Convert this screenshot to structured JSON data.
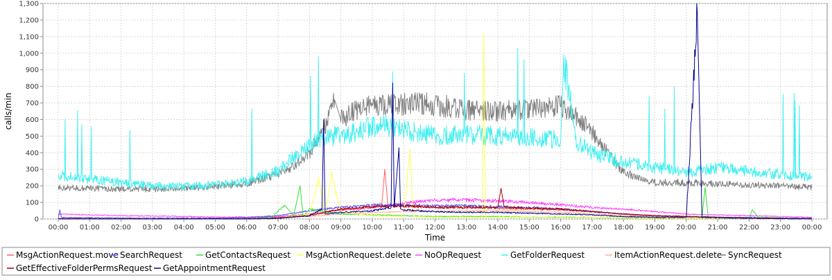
{
  "chart_data": {
    "type": "line",
    "xlabel": "Time",
    "ylabel": "calls/min",
    "ylim": [
      0,
      1300
    ],
    "xlim": [
      "00:00",
      "24:00"
    ],
    "x_tick_labels": [
      "00:00",
      "01:00",
      "02:00",
      "03:00",
      "04:00",
      "05:00",
      "06:00",
      "07:00",
      "08:00",
      "09:00",
      "10:00",
      "11:00",
      "12:00",
      "13:00",
      "14:00",
      "15:00",
      "16:00",
      "17:00",
      "18:00",
      "19:00",
      "20:00",
      "21:00",
      "22:00",
      "23:00",
      "00:00"
    ],
    "y_tick_labels": [
      "0",
      "100",
      "200",
      "300",
      "400",
      "500",
      "600",
      "700",
      "800",
      "900",
      "1,000",
      "1,100",
      "1,200",
      "1,300"
    ],
    "y_tick_values": [
      0,
      100,
      200,
      300,
      400,
      500,
      600,
      700,
      800,
      900,
      1000,
      1100,
      1200,
      1300
    ],
    "grid": true,
    "legend_position": "bottom",
    "x_unit": "hours",
    "series": [
      {
        "name": "MsgActionRequest.move",
        "color": "#ff6060",
        "x": [
          0,
          1,
          2,
          3,
          4,
          5,
          6,
          7,
          7.5,
          8,
          8.5,
          9,
          9.5,
          10,
          10.3,
          10.4,
          10.5,
          11,
          12,
          13,
          14,
          15,
          16,
          17,
          18,
          19,
          20,
          21,
          22,
          23,
          24
        ],
        "y": [
          5,
          5,
          5,
          5,
          3,
          3,
          5,
          10,
          20,
          30,
          45,
          55,
          60,
          70,
          80,
          300,
          80,
          75,
          70,
          70,
          65,
          60,
          55,
          45,
          30,
          20,
          15,
          10,
          8,
          5,
          5
        ]
      },
      {
        "name": "SearchRequest",
        "color": "#5050ff",
        "x": [
          0,
          0.05,
          0.1,
          1,
          2,
          3,
          4,
          5,
          6,
          7,
          8,
          9,
          10,
          11,
          12,
          13,
          14,
          15,
          16,
          17,
          18,
          19,
          20,
          21,
          22,
          23,
          24
        ],
        "y": [
          5,
          55,
          10,
          8,
          5,
          5,
          5,
          5,
          8,
          20,
          50,
          70,
          85,
          85,
          80,
          80,
          75,
          70,
          60,
          45,
          30,
          20,
          15,
          10,
          8,
          5,
          5
        ]
      },
      {
        "name": "GetContactsRequest",
        "color": "#30e030",
        "x": [
          0,
          6,
          6.8,
          7.2,
          7.5,
          7.7,
          7.8,
          8,
          9,
          10,
          11,
          12,
          13,
          14,
          15,
          16,
          17,
          18,
          19,
          20,
          20.5,
          20.6,
          20.7,
          21,
          22,
          22.1,
          22.3,
          23,
          24
        ],
        "y": [
          0,
          0,
          10,
          85,
          20,
          200,
          15,
          60,
          30,
          25,
          20,
          15,
          15,
          15,
          10,
          10,
          8,
          5,
          5,
          5,
          10,
          190,
          10,
          5,
          5,
          55,
          10,
          5,
          0
        ]
      },
      {
        "name": "MsgActionRequest.delete",
        "color": "#ffff50",
        "x": [
          0,
          6,
          7,
          8,
          8.3,
          8.5,
          8.7,
          9,
          10,
          11,
          11.2,
          11.3,
          12,
          13,
          13.5,
          13.55,
          13.6,
          14,
          15,
          16,
          17,
          18,
          19,
          20,
          21,
          22,
          23,
          24
        ],
        "y": [
          0,
          0,
          5,
          30,
          240,
          20,
          270,
          40,
          20,
          15,
          420,
          15,
          10,
          10,
          10,
          1120,
          10,
          10,
          10,
          8,
          8,
          5,
          5,
          5,
          5,
          5,
          0,
          0
        ]
      },
      {
        "name": "NoOpRequest",
        "color": "#ff40ff",
        "x": [
          0,
          1,
          2,
          3,
          4,
          5,
          6,
          7,
          8,
          9,
          10,
          11,
          12,
          13,
          14,
          15,
          16,
          17,
          18,
          19,
          20,
          21,
          22,
          23,
          24
        ],
        "y": [
          30,
          25,
          20,
          18,
          15,
          12,
          12,
          15,
          30,
          55,
          70,
          95,
          115,
          115,
          110,
          100,
          85,
          70,
          60,
          45,
          30,
          25,
          20,
          15,
          10
        ]
      },
      {
        "name": "GetFolderRequest",
        "color": "#40f0f0",
        "x": [
          0,
          1,
          2,
          3,
          4,
          5,
          6,
          7,
          7.5,
          8,
          8.5,
          9,
          9.5,
          10,
          10.5,
          11,
          11.5,
          12,
          13,
          14,
          15,
          15.5,
          16,
          16.1,
          16.5,
          17,
          17.5,
          18,
          18.5,
          19,
          19.5,
          20,
          20.5,
          21,
          22,
          23,
          24
        ],
        "y": [
          260,
          240,
          220,
          200,
          195,
          205,
          230,
          290,
          370,
          450,
          500,
          500,
          520,
          560,
          560,
          540,
          520,
          500,
          510,
          500,
          490,
          480,
          480,
          960,
          470,
          400,
          370,
          340,
          330,
          310,
          300,
          280,
          300,
          310,
          290,
          270,
          250
        ]
      },
      {
        "name": "ItemActionRequest.delete",
        "color": "#ffb090",
        "x": [
          0,
          6,
          7,
          8,
          9,
          10,
          11,
          12,
          13,
          14,
          15,
          16,
          17,
          18,
          19,
          20,
          21,
          22,
          23,
          24
        ],
        "y": [
          3,
          3,
          5,
          15,
          30,
          40,
          45,
          45,
          50,
          50,
          45,
          40,
          30,
          20,
          15,
          10,
          8,
          5,
          5,
          3
        ]
      },
      {
        "name": "SyncRequest",
        "color": "#808080",
        "x": [
          0,
          1,
          2,
          3,
          4,
          5,
          6,
          7,
          7.5,
          8,
          8.5,
          8.8,
          9,
          9.5,
          10,
          11,
          11.3,
          12,
          13,
          14,
          15,
          15.5,
          16,
          16.5,
          17,
          17.5,
          18,
          19,
          20,
          21,
          22,
          23,
          24
        ],
        "y": [
          190,
          185,
          180,
          180,
          185,
          195,
          215,
          270,
          320,
          400,
          560,
          720,
          600,
          660,
          680,
          690,
          700,
          690,
          660,
          650,
          660,
          680,
          680,
          620,
          520,
          400,
          280,
          220,
          220,
          210,
          205,
          200,
          190
        ]
      },
      {
        "name": "GetEffectiveFolderPermsRequest",
        "color": "#a00000",
        "x": [
          0,
          6,
          7,
          8,
          8.5,
          9,
          10,
          11,
          12,
          13,
          14,
          14.1,
          14.2,
          15,
          16,
          17,
          18,
          19,
          20,
          21,
          22,
          23,
          24
        ],
        "y": [
          0,
          0,
          5,
          20,
          40,
          60,
          75,
          80,
          70,
          70,
          70,
          185,
          70,
          65,
          60,
          45,
          30,
          20,
          15,
          10,
          5,
          3,
          0
        ]
      },
      {
        "name": "GetAppointmentRequest",
        "color": "#000090",
        "x": [
          0,
          6,
          7,
          8,
          8.4,
          8.45,
          8.5,
          9,
          10,
          10.6,
          10.65,
          10.7,
          10.85,
          10.9,
          11,
          12,
          13,
          14,
          15,
          16,
          17,
          18,
          19,
          20,
          20.35,
          20.5,
          21,
          22,
          23,
          24
        ],
        "y": [
          0,
          0,
          5,
          20,
          60,
          600,
          30,
          40,
          50,
          70,
          820,
          70,
          430,
          60,
          55,
          45,
          40,
          40,
          35,
          30,
          25,
          15,
          10,
          10,
          1250,
          10,
          8,
          5,
          3,
          0
        ]
      }
    ]
  }
}
